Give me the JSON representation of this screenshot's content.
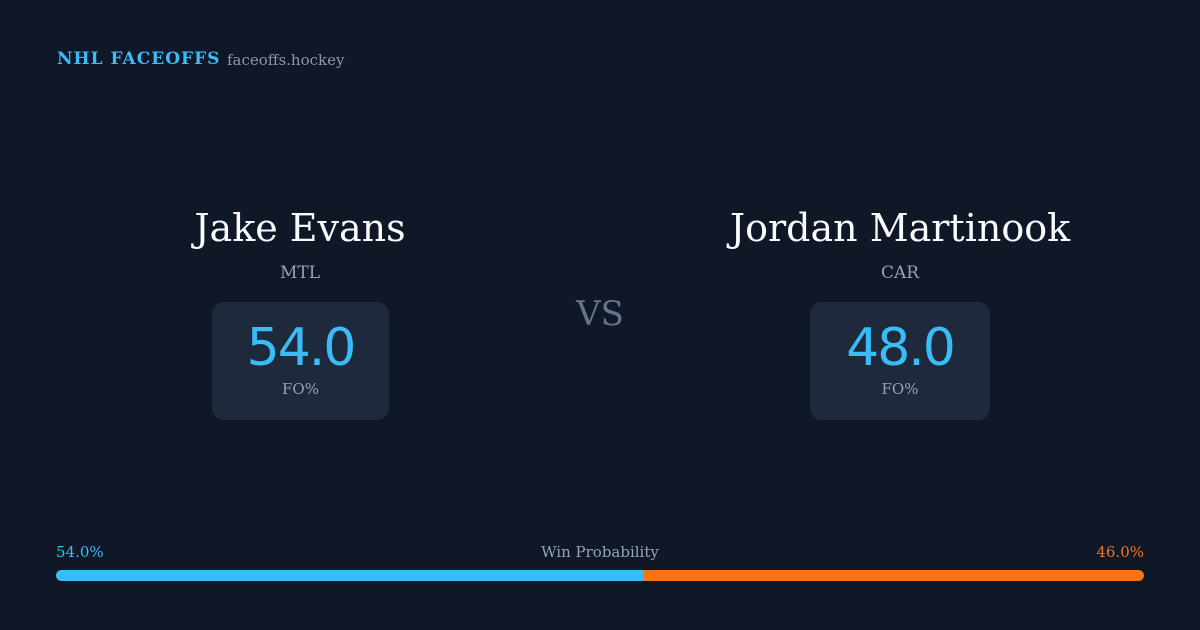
{
  "header": {
    "title": "NHL FACEOFFS",
    "site": "faceoffs.hockey"
  },
  "players": [
    {
      "name": "Jake Evans",
      "team": "MTL",
      "stat": "54.0",
      "stat_label": "FO%"
    },
    {
      "name": "Jordan Martinook",
      "team": "CAR",
      "stat": "48.0",
      "stat_label": "FO%"
    }
  ],
  "versus": "VS",
  "win_probability": {
    "title": "Win Probability",
    "left": {
      "value": 54.0,
      "label": "54.0%",
      "color": "#38bdf8"
    },
    "right": {
      "value": 46.0,
      "label": "46.0%",
      "color": "#f97316"
    }
  }
}
